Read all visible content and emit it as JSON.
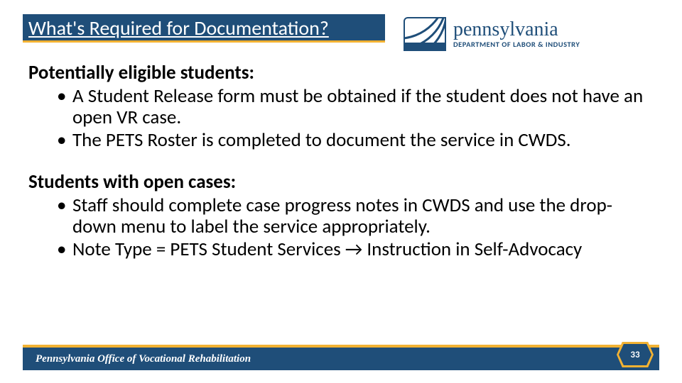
{
  "colors": {
    "primary": "#1f4e79",
    "accent": "#f2b233",
    "text": "#000000",
    "background": "#ffffff"
  },
  "typography": {
    "title_fontsize": 28,
    "body_fontsize": 27,
    "footer_fontsize": 15,
    "logo_state_fontsize": 28,
    "logo_dept_fontsize": 10.5,
    "pagenum_fontsize": 13
  },
  "header": {
    "title": "What's Required for Documentation?",
    "logo": {
      "state": "pennsylvania",
      "dept": "DEPARTMENT OF LABOR & INDUSTRY"
    }
  },
  "body": {
    "sections": [
      {
        "heading": "Potentially eligible students:",
        "bullets": [
          "A Student Release form must be obtained if the student does not have an open VR case.",
          "The PETS Roster is completed to document the service in CWDS."
        ]
      },
      {
        "heading": "Students with open cases:",
        "bullets": [
          "Staff should complete case progress notes in CWDS and use the drop-down menu to label the service appropriately.",
          "Note Type = PETS Student Services → Instruction in Self-Advocacy"
        ]
      }
    ]
  },
  "footer": {
    "org": "Pennsylvania Office of Vocational Rehabilitation",
    "page": "33"
  }
}
